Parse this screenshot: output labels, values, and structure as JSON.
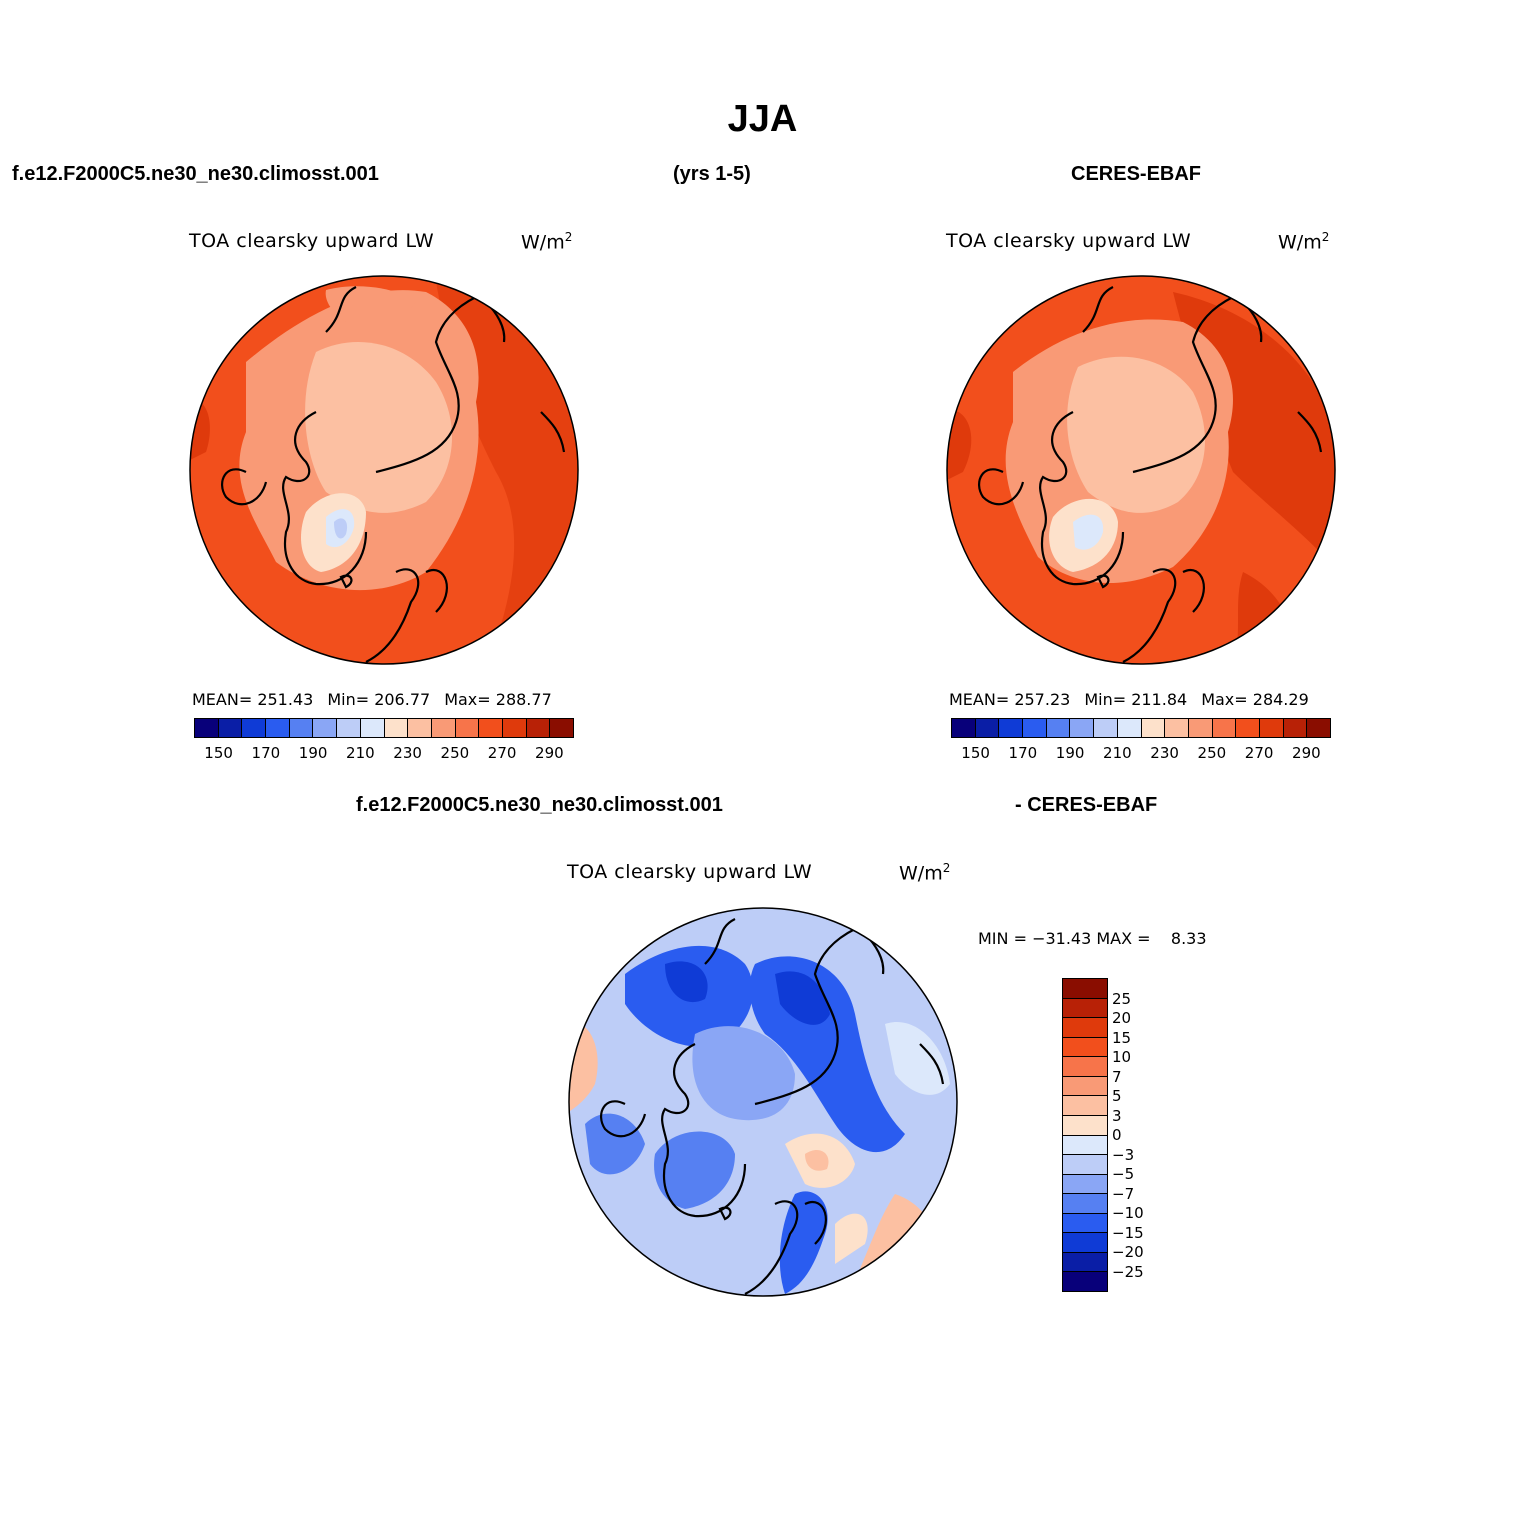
{
  "figure": {
    "title": "JJA",
    "case_name": "f.e12.F2000C5.ne30_ne30.climosst.001",
    "years": "(yrs 1-5)",
    "obs_name": "CERES-EBAF",
    "diff_case": "f.e12.F2000C5.ne30_ne30.climosst.001",
    "diff_obs": "- CERES-EBAF"
  },
  "panels": [
    {
      "id": "model",
      "variable": "TOA clearsky upward LW",
      "unit": "W/m",
      "unit_exp": "2",
      "mean": "MEAN= 251.43",
      "min": "Min= 206.77",
      "max": "Max= 288.77"
    },
    {
      "id": "obs",
      "variable": "TOA clearsky upward LW",
      "unit": "W/m",
      "unit_exp": "2",
      "mean": "MEAN= 257.23",
      "min": "Min= 211.84",
      "max": "Max= 284.29"
    },
    {
      "id": "diff",
      "variable": "TOA clearsky upward LW",
      "unit": "W/m",
      "unit_exp": "2",
      "minmax": "MIN = −31.43 MAX =    8.33"
    }
  ],
  "abs_colorbar": {
    "colors": [
      "#08007a",
      "#0a1ea6",
      "#0f3bd6",
      "#2a5cf0",
      "#5680f2",
      "#8aa6f5",
      "#bdcdf7",
      "#dce8fb",
      "#fde1cb",
      "#fcc0a2",
      "#f99a76",
      "#f7744a",
      "#f24f1c",
      "#df3a0c",
      "#b82106",
      "#8a0d00"
    ],
    "labels": [
      "150",
      "170",
      "190",
      "210",
      "230",
      "250",
      "270",
      "290"
    ]
  },
  "diff_colorbar": {
    "colors": [
      "#8a0d00",
      "#b82106",
      "#df3a0c",
      "#f24f1c",
      "#f7744a",
      "#f99a76",
      "#fcc0a2",
      "#fde1cb",
      "#dce8fb",
      "#bdcdf7",
      "#8aa6f5",
      "#5680f2",
      "#2a5cf0",
      "#0f3bd6",
      "#0a1ea6",
      "#08007a"
    ],
    "labels": [
      "25",
      "20",
      "15",
      "10",
      "7",
      "5",
      "3",
      "0",
      "−3",
      "−5",
      "−7",
      "−10",
      "−15",
      "−20",
      "−25"
    ]
  }
}
